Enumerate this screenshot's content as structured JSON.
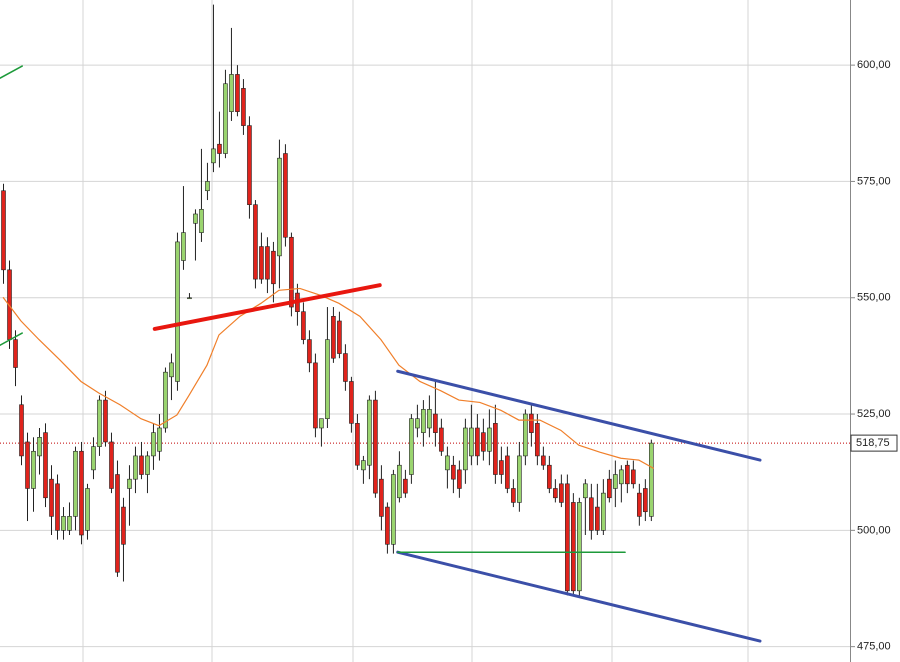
{
  "chart_data": {
    "type": "candlestick",
    "up_color": "#9ad46f",
    "down_color": "#e0231c",
    "open": [
      573,
      556,
      541,
      527,
      519,
      509,
      516,
      521,
      511,
      510,
      500,
      500,
      503,
      517,
      500,
      513,
      518,
      528,
      519,
      512,
      505,
      509,
      511,
      516,
      512,
      516,
      517,
      522,
      533,
      532,
      558,
      550,
      566,
      564,
      573,
      579,
      583,
      581,
      590,
      598,
      595,
      587,
      570,
      561,
      561,
      560,
      559,
      581,
      563,
      551,
      547,
      541,
      536,
      522,
      524,
      546,
      545,
      538,
      532,
      523,
      513,
      514,
      528,
      511,
      505,
      497,
      507,
      511,
      512,
      522,
      521,
      522,
      525,
      522,
      513,
      514,
      513,
      513,
      516,
      522,
      521,
      517,
      523,
      515,
      516,
      509,
      506,
      516,
      525,
      523,
      516,
      514,
      509,
      510,
      510,
      506,
      487,
      507,
      507,
      505,
      500,
      511,
      509,
      510,
      514,
      513,
      508,
      509,
      503
    ],
    "high": [
      574.5,
      558,
      543,
      529,
      521,
      520,
      522,
      523,
      514,
      512,
      505,
      506,
      518,
      519,
      510,
      520,
      529,
      530,
      521,
      515,
      507,
      514,
      518,
      519,
      517,
      523,
      525,
      535,
      538,
      564,
      574,
      551,
      569,
      582,
      579,
      613,
      590,
      599,
      608,
      600,
      597,
      589,
      571,
      564,
      563,
      562,
      584,
      583,
      564,
      553,
      549,
      543,
      538,
      524,
      548,
      548,
      547,
      540,
      533,
      525,
      516,
      529,
      530,
      514,
      506,
      513,
      517,
      513,
      525,
      527,
      528,
      529,
      532,
      524,
      518,
      516,
      515,
      524,
      527,
      525,
      524,
      526,
      527,
      518,
      518,
      511,
      519,
      526,
      527,
      525,
      518,
      516,
      511,
      512,
      512,
      508,
      507,
      511,
      510,
      510,
      511,
      513,
      515,
      514,
      515,
      515,
      510,
      511,
      519.5
    ],
    "low": [
      553,
      539,
      531,
      514,
      502,
      504,
      512,
      505,
      499,
      498,
      498,
      499,
      500,
      497,
      498,
      511,
      516,
      518,
      508,
      490,
      489,
      501,
      508,
      511,
      508,
      513,
      515,
      521,
      528,
      530,
      556,
      550,
      558,
      562,
      571,
      577,
      578,
      580,
      588,
      589,
      585,
      567,
      552,
      553,
      551,
      549,
      552,
      561,
      546,
      544,
      540,
      534,
      520,
      518,
      522,
      536,
      537,
      530,
      521,
      513,
      510,
      511,
      507,
      500,
      495,
      495,
      506,
      507,
      510,
      520,
      518,
      520,
      518,
      516,
      509,
      508,
      507,
      510,
      514,
      514,
      515,
      514,
      510,
      510,
      508,
      505,
      504,
      514,
      518,
      514,
      513,
      508,
      506,
      505,
      486,
      486,
      486,
      499,
      498,
      499,
      499,
      506,
      505,
      506,
      508,
      509,
      501,
      502,
      502
    ],
    "close": [
      556,
      541,
      535,
      516,
      509,
      517,
      520,
      507,
      503,
      500,
      503,
      503,
      517,
      499,
      509,
      518,
      528,
      519,
      509,
      491,
      497,
      511,
      516,
      512,
      516,
      521,
      522,
      534,
      536,
      562,
      564,
      550,
      568,
      569,
      575,
      582,
      581,
      596,
      598,
      590,
      587,
      570,
      554,
      554,
      554,
      553,
      580,
      563,
      548,
      547,
      541,
      536,
      522,
      524,
      541,
      537,
      538,
      532,
      523,
      514,
      515,
      528,
      508,
      503,
      497,
      512,
      514,
      508,
      524,
      524,
      526,
      526,
      521,
      517,
      516,
      511,
      509,
      522,
      522,
      516,
      517,
      522,
      512,
      512,
      509,
      506,
      516,
      525,
      521,
      516,
      514,
      509,
      507,
      506,
      487,
      487,
      506,
      510,
      500,
      500,
      508,
      507,
      512,
      513,
      510,
      510,
      503,
      504,
      518.75
    ],
    "xlim": [
      -0.5,
      141.2
    ],
    "ylim": [
      471.7,
      614
    ],
    "yticks": [
      {
        "value": 475,
        "label": "475,00"
      },
      {
        "value": 500,
        "label": "500,00"
      },
      {
        "value": 525,
        "label": "525,00"
      },
      {
        "value": 550,
        "label": "550,00"
      },
      {
        "value": 575,
        "label": "575,00"
      },
      {
        "value": 600,
        "label": "600,00"
      }
    ],
    "grid": true,
    "last": {
      "value": 518.75,
      "label": "518,75"
    },
    "last_color": "#c00000",
    "overlays": [
      {
        "type": "line",
        "color": "#f07f2a",
        "x": [
          0,
          3,
          6,
          9.5,
          13,
          16,
          19.5,
          23,
          26,
          29,
          31,
          34,
          36,
          39.5,
          43,
          46,
          49.5,
          53,
          56,
          59.5,
          63,
          66,
          69.5,
          73,
          76,
          79.5,
          83,
          86,
          89.5,
          93,
          96,
          99.5,
          103,
          106,
          108.5
        ],
        "values": [
          550.1,
          545,
          541,
          536.6,
          532,
          529.5,
          527,
          524,
          522.5,
          524.8,
          529,
          535.5,
          542,
          546,
          548.8,
          551.6,
          552,
          550.5,
          548.8,
          546,
          541,
          535.5,
          532,
          530,
          528,
          527.5,
          525.8,
          523.7,
          523.7,
          521.5,
          518.3,
          516.8,
          515.5,
          515.1,
          513.3
        ]
      }
    ],
    "lines": [
      {
        "color": "#e8170f",
        "width": 4,
        "x": [
          25.3,
          62.8
        ],
        "values": [
          543.3,
          552.7
        ]
      },
      {
        "color": "#3b4fa8",
        "width": 3,
        "x": [
          65.8,
          126.2
        ],
        "values": [
          534.2,
          515.1
        ]
      },
      {
        "color": "#3b4fa8",
        "width": 3,
        "x": [
          65.8,
          126.2
        ],
        "values": [
          495.3,
          476.2
        ]
      },
      {
        "color": "#1d9a3a",
        "width": 1.5,
        "x": [
          65.8,
          103.7
        ],
        "values": [
          495.3,
          495.3
        ]
      },
      {
        "color": "#1d9a3a",
        "width": 1.5,
        "x": [
          -0.5,
          3.2
        ],
        "values": [
          597.2,
          599.8
        ]
      },
      {
        "color": "#1d9a3a",
        "width": 1.5,
        "x": [
          -0.5,
          3.2
        ],
        "values": [
          539.8,
          542.4
        ]
      }
    ]
  }
}
